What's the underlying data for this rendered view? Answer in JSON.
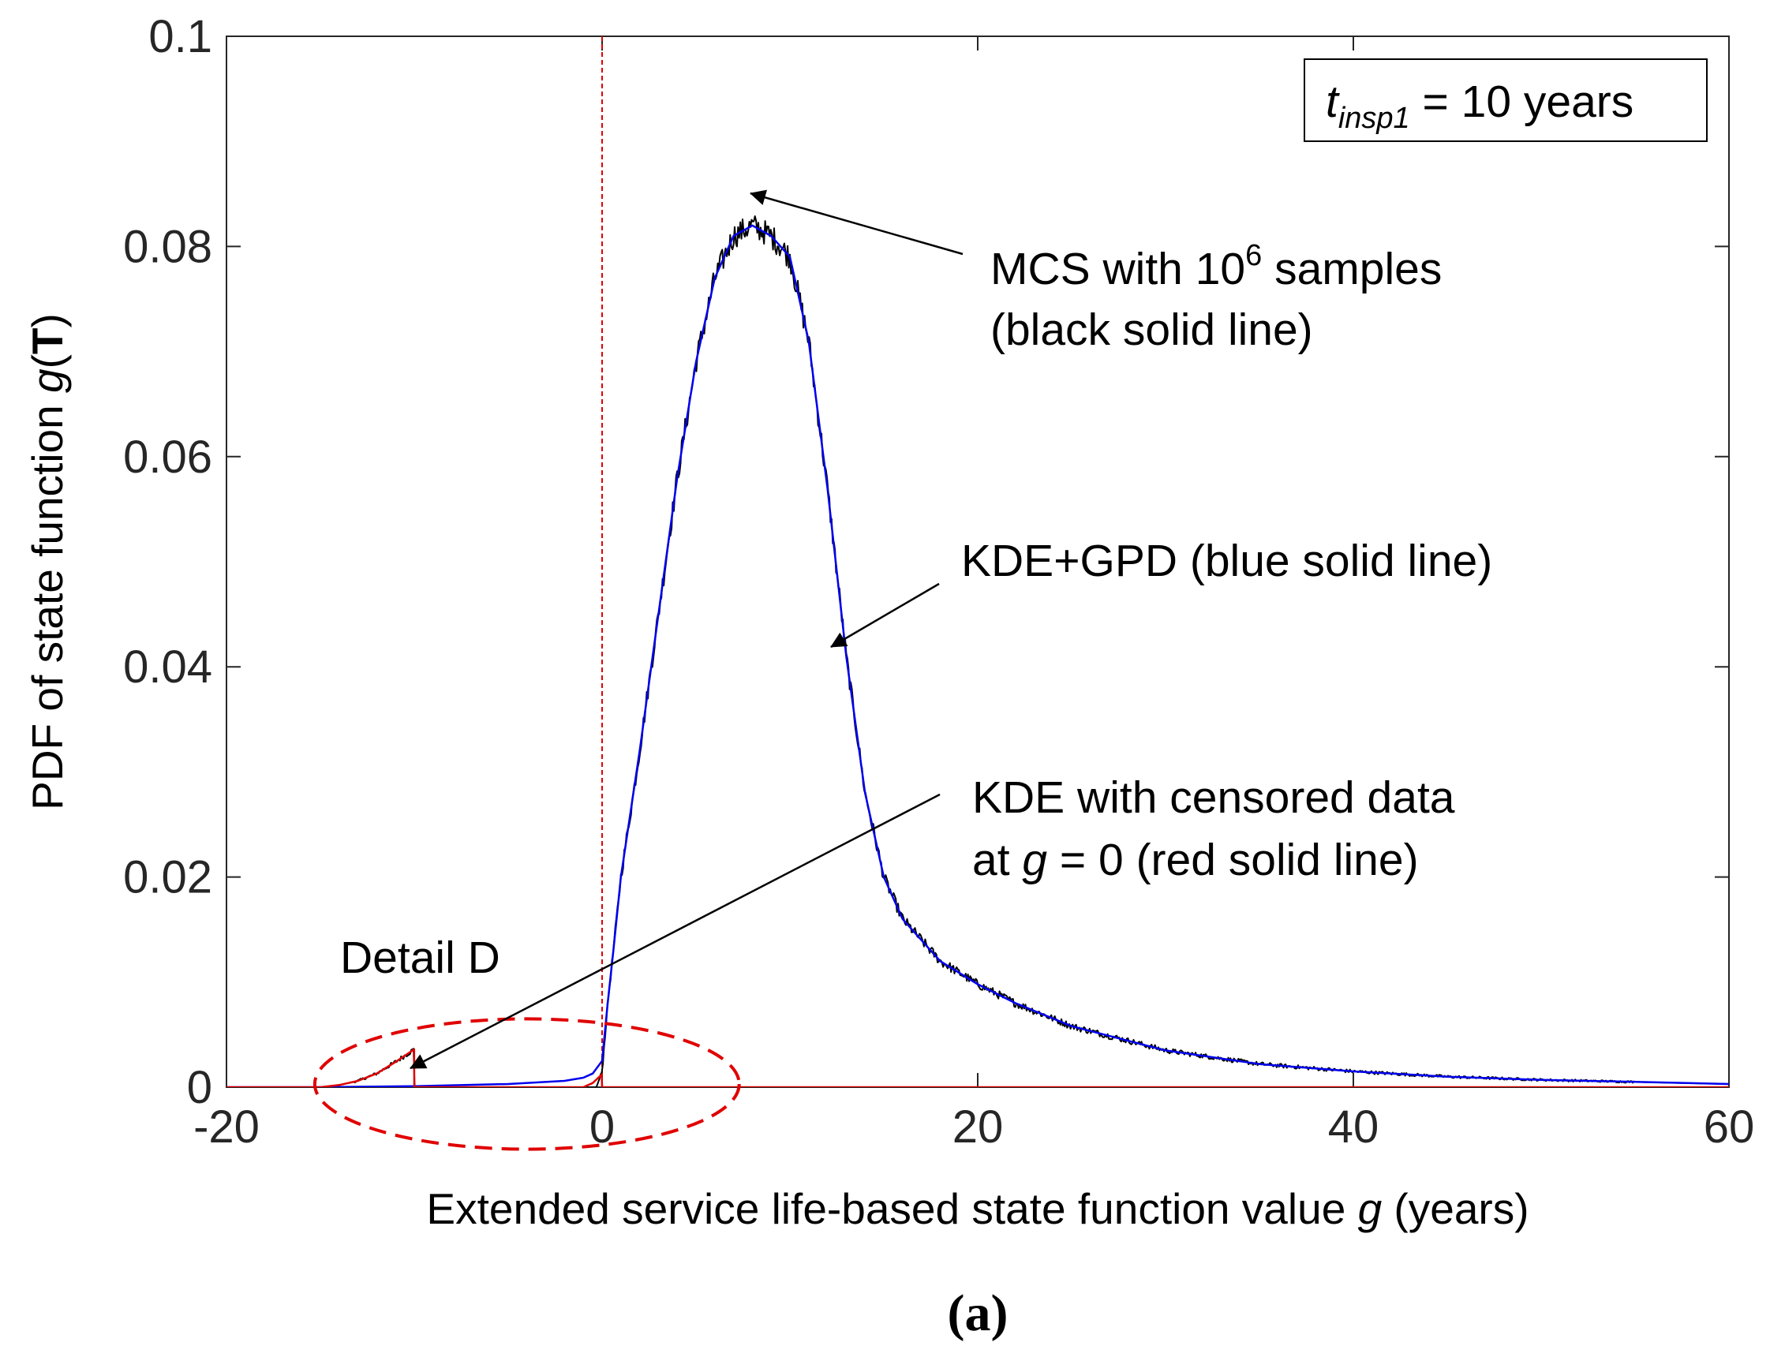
{
  "chart_data": {
    "type": "line",
    "title": "",
    "caption": "(a)",
    "xlabel": {
      "prefix": "Extended service life-based state function value ",
      "var": "g",
      "suffix": " (years)"
    },
    "ylabel": {
      "prefix": "PDF of state function ",
      "var": "g",
      "open": "(",
      "bold": "T",
      "close": ")"
    },
    "xlim": [
      -20,
      60
    ],
    "ylim": [
      0,
      0.1
    ],
    "x_ticks": [
      -20,
      0,
      20,
      40,
      60
    ],
    "x_tick_labels": [
      "-20",
      "0",
      "20",
      "40",
      "60"
    ],
    "y_ticks": [
      0,
      0.02,
      0.04,
      0.06,
      0.08,
      0.1
    ],
    "y_tick_labels": [
      "0",
      "0.02",
      "0.04",
      "0.06",
      "0.08",
      "0.1"
    ],
    "legend_box": {
      "var": "t",
      "subscript": "insp1",
      "text": " = 10 years",
      "position": "top-right"
    },
    "vertical_line": {
      "x": 0,
      "color": "#e00000",
      "style": "dashed"
    },
    "ellipse": {
      "cx": -4,
      "cy": 0.0003,
      "rx": 11.3,
      "ry": 0.0062,
      "color": "#e00000",
      "style": "dashed"
    },
    "series": [
      {
        "name": "MCS with 10^6 samples",
        "color": "#000000",
        "x": [
          -20,
          -15,
          -14,
          -13,
          -12,
          -11,
          -10.5,
          -10.01,
          -10,
          -5,
          -1,
          -0.3,
          0,
          0.3,
          0.6,
          1,
          2,
          3,
          4,
          5,
          6,
          7,
          8,
          9,
          10,
          11,
          12,
          13,
          14,
          15,
          16,
          18,
          20,
          22,
          25,
          30,
          35,
          40,
          45,
          50,
          55,
          60
        ],
        "y": [
          0,
          0,
          0.0002,
          0.0006,
          0.0013,
          0.0024,
          0.003,
          0.0036,
          0,
          0,
          0,
          0,
          0.0015,
          0.008,
          0.013,
          0.02,
          0.032,
          0.045,
          0.058,
          0.069,
          0.077,
          0.081,
          0.082,
          0.081,
          0.079,
          0.071,
          0.057,
          0.041,
          0.028,
          0.02,
          0.016,
          0.012,
          0.0098,
          0.008,
          0.0058,
          0.0035,
          0.0022,
          0.0015,
          0.001,
          0.0007,
          0.0005,
          0.0003
        ],
        "noise": 0.0012
      },
      {
        "name": "KDE+GPD",
        "color": "#0000ee",
        "x": [
          -20,
          -15,
          -10,
          -5,
          -2,
          -1,
          -0.5,
          0,
          0.3,
          0.6,
          1,
          2,
          3,
          4,
          5,
          6,
          7,
          8,
          9,
          10,
          11,
          12,
          13,
          14,
          15,
          16,
          18,
          20,
          22,
          25,
          30,
          35,
          40,
          45,
          50,
          55,
          60
        ],
        "y": [
          0,
          0,
          0.0001,
          0.0003,
          0.0006,
          0.0009,
          0.0013,
          0.0025,
          0.008,
          0.013,
          0.02,
          0.032,
          0.045,
          0.058,
          0.069,
          0.077,
          0.081,
          0.082,
          0.081,
          0.079,
          0.071,
          0.057,
          0.041,
          0.028,
          0.02,
          0.016,
          0.012,
          0.0098,
          0.008,
          0.0058,
          0.0035,
          0.0022,
          0.0015,
          0.001,
          0.0007,
          0.0005,
          0.0003
        ]
      },
      {
        "name": "KDE with censored data at g = 0",
        "color": "#e00000",
        "x": [
          -20,
          -15,
          -14,
          -13,
          -12,
          -11,
          -10.5,
          -10.01,
          -10,
          -1,
          -0.5,
          -0.02,
          0,
          60
        ],
        "y": [
          0,
          0,
          0.0002,
          0.0006,
          0.0013,
          0.0024,
          0.003,
          0.0036,
          0,
          0,
          0.0004,
          0.0012,
          0,
          0
        ]
      }
    ],
    "annotations": [
      {
        "lines": [
          {
            "pre": "MCS with 10",
            "sup": "6",
            "post": " samples"
          },
          {
            "pre": "(black solid line)"
          }
        ],
        "arrow_to": [
          8.1,
          0.0855
        ]
      },
      {
        "lines": [
          {
            "pre": "KDE+GPD (blue solid line)"
          }
        ],
        "arrow_to": [
          12.2,
          0.042
        ]
      },
      {
        "lines": [
          {
            "pre": "KDE with censored data"
          },
          {
            "pre": "at ",
            "var": "g",
            "post": " = 0 (red solid line)"
          }
        ],
        "arrow_to": [
          -10,
          0.002
        ]
      },
      {
        "lines": [
          {
            "pre": "Detail D"
          }
        ]
      }
    ]
  }
}
